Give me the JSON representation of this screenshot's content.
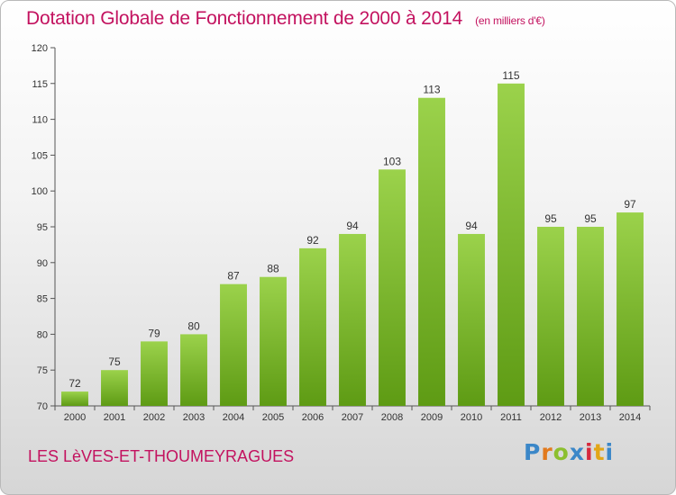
{
  "header": {
    "title": "Dotation Globale de Fonctionnement de 2000 à 2014",
    "unit": "(en milliers d'€)"
  },
  "footer": {
    "commune": "LES LèVES-ET-THOUMEYRAGUES",
    "logo": "Proxiti"
  },
  "colors": {
    "title": "#c3125f",
    "bar_top": "#9bd24b",
    "bar_bottom": "#5e9b14",
    "logo": [
      "#3b87c8",
      "#e27a1d",
      "#8cbf2f",
      "#3b87c8",
      "#d6283c",
      "#e2a617",
      "#3b87c8"
    ]
  },
  "chart_data": {
    "type": "bar",
    "categories": [
      "2000",
      "2001",
      "2002",
      "2003",
      "2004",
      "2005",
      "2006",
      "2007",
      "2008",
      "2009",
      "2010",
      "2011",
      "2012",
      "2013",
      "2014"
    ],
    "values": [
      72,
      75,
      79,
      80,
      87,
      88,
      92,
      94,
      103,
      113,
      94,
      115,
      95,
      95,
      97
    ],
    "title": "Dotation Globale de Fonctionnement de 2000 à 2014",
    "ylabel": "(en milliers d'€)",
    "ylim": [
      70,
      120
    ],
    "yticks": [
      70,
      75,
      80,
      85,
      90,
      95,
      100,
      105,
      110,
      115,
      120
    ],
    "grid": false,
    "data_labels": true
  }
}
